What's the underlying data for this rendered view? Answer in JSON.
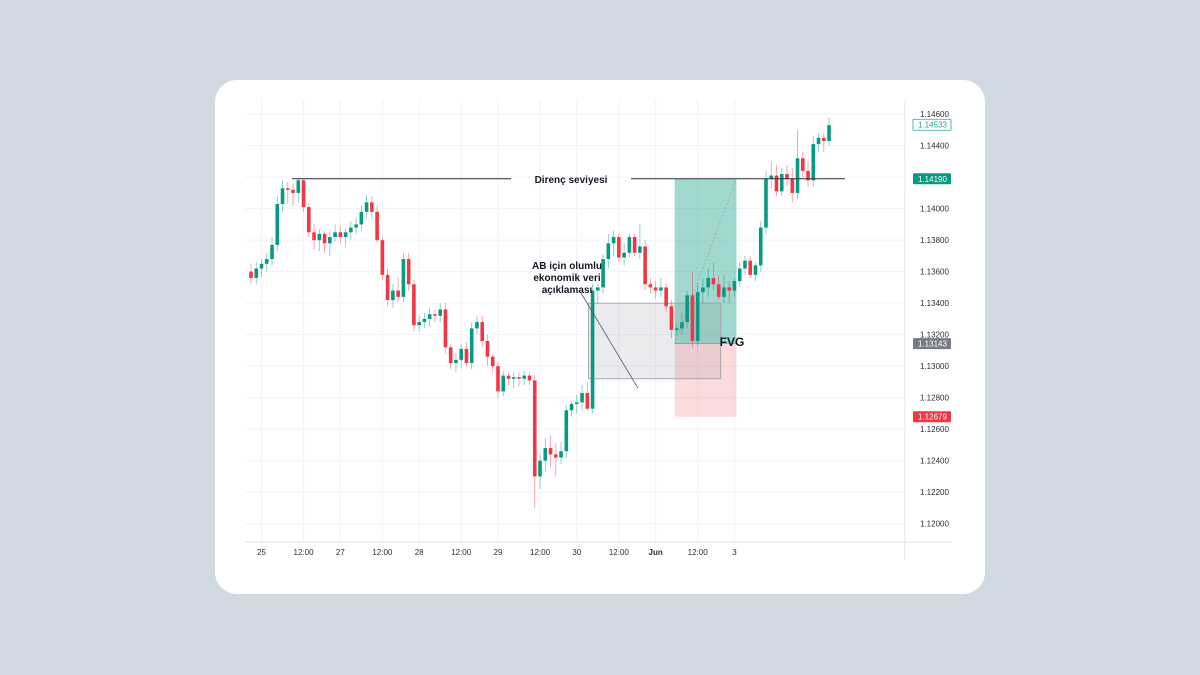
{
  "chart_data": {
    "type": "candlestick",
    "y_ticks": [
      "1.14600",
      "1.14400",
      "1.14200",
      "1.14000",
      "1.13800",
      "1.13600",
      "1.13400",
      "1.13200",
      "1.13000",
      "1.12800",
      "1.12600",
      "1.12400",
      "1.12200",
      "1.12000"
    ],
    "ylim": [
      1.1189,
      1.1469
    ],
    "x_ticks": [
      {
        "label": "25",
        "i": 2,
        "bold": false
      },
      {
        "label": "12:00",
        "i": 10,
        "bold": false
      },
      {
        "label": "27",
        "i": 17,
        "bold": false
      },
      {
        "label": "12:00",
        "i": 25,
        "bold": false
      },
      {
        "label": "28",
        "i": 32,
        "bold": false
      },
      {
        "label": "12:00",
        "i": 40,
        "bold": false
      },
      {
        "label": "29",
        "i": 47,
        "bold": false
      },
      {
        "label": "12:00",
        "i": 55,
        "bold": false
      },
      {
        "label": "30",
        "i": 62,
        "bold": false
      },
      {
        "label": "12:00",
        "i": 70,
        "bold": false
      },
      {
        "label": "Jun",
        "i": 77,
        "bold": true
      },
      {
        "label": "12:00",
        "i": 85,
        "bold": false
      },
      {
        "label": "3",
        "i": 92,
        "bold": false
      }
    ],
    "candles": [
      [
        1.136,
        1.1365,
        1.1352,
        1.1356
      ],
      [
        1.1356,
        1.1366,
        1.1352,
        1.1362
      ],
      [
        1.1362,
        1.1368,
        1.1357,
        1.1365
      ],
      [
        1.1365,
        1.1372,
        1.136,
        1.1368
      ],
      [
        1.1368,
        1.1382,
        1.1364,
        1.1377
      ],
      [
        1.1377,
        1.1408,
        1.1373,
        1.1403
      ],
      [
        1.1403,
        1.1418,
        1.1398,
        1.1413
      ],
      [
        1.1413,
        1.1417,
        1.1403,
        1.1412
      ],
      [
        1.1412,
        1.1416,
        1.1402,
        1.141
      ],
      [
        1.141,
        1.1419,
        1.1404,
        1.1418
      ],
      [
        1.1418,
        1.1419,
        1.1398,
        1.1401
      ],
      [
        1.1401,
        1.1404,
        1.1382,
        1.1385
      ],
      [
        1.1385,
        1.139,
        1.1374,
        1.138
      ],
      [
        1.138,
        1.1387,
        1.1373,
        1.1384
      ],
      [
        1.1384,
        1.1386,
        1.1372,
        1.1378
      ],
      [
        1.1378,
        1.1386,
        1.137,
        1.1382
      ],
      [
        1.1382,
        1.139,
        1.1379,
        1.1385
      ],
      [
        1.1385,
        1.1389,
        1.1378,
        1.1382
      ],
      [
        1.1382,
        1.1387,
        1.1376,
        1.1385
      ],
      [
        1.1385,
        1.1392,
        1.138,
        1.1388
      ],
      [
        1.1388,
        1.1394,
        1.1384,
        1.139
      ],
      [
        1.139,
        1.1402,
        1.1386,
        1.1398
      ],
      [
        1.1398,
        1.1409,
        1.1394,
        1.1404
      ],
      [
        1.1404,
        1.1408,
        1.1394,
        1.1398
      ],
      [
        1.1398,
        1.1402,
        1.1378,
        1.138
      ],
      [
        1.138,
        1.1382,
        1.1355,
        1.1358
      ],
      [
        1.1358,
        1.1362,
        1.1338,
        1.1342
      ],
      [
        1.1342,
        1.1352,
        1.1337,
        1.1348
      ],
      [
        1.1348,
        1.1356,
        1.1341,
        1.1344
      ],
      [
        1.1344,
        1.1372,
        1.1341,
        1.1368
      ],
      [
        1.1368,
        1.1372,
        1.1348,
        1.1352
      ],
      [
        1.1352,
        1.1355,
        1.1322,
        1.1326
      ],
      [
        1.1326,
        1.1332,
        1.1322,
        1.1328
      ],
      [
        1.1328,
        1.1334,
        1.1324,
        1.133
      ],
      [
        1.133,
        1.1337,
        1.1325,
        1.1333
      ],
      [
        1.1333,
        1.1336,
        1.1328,
        1.1332
      ],
      [
        1.1332,
        1.134,
        1.1328,
        1.1336
      ],
      [
        1.1336,
        1.134,
        1.1308,
        1.1312
      ],
      [
        1.1312,
        1.1314,
        1.1298,
        1.1302
      ],
      [
        1.1302,
        1.1308,
        1.1296,
        1.1304
      ],
      [
        1.1304,
        1.1314,
        1.1299,
        1.1311
      ],
      [
        1.1311,
        1.1315,
        1.13,
        1.1302
      ],
      [
        1.1302,
        1.1328,
        1.1298,
        1.1324
      ],
      [
        1.1324,
        1.1332,
        1.132,
        1.1328
      ],
      [
        1.1328,
        1.1332,
        1.1312,
        1.1316
      ],
      [
        1.1316,
        1.132,
        1.13,
        1.1306
      ],
      [
        1.1306,
        1.1308,
        1.1296,
        1.13
      ],
      [
        1.13,
        1.1303,
        1.128,
        1.1284
      ],
      [
        1.1284,
        1.1297,
        1.1281,
        1.1294
      ],
      [
        1.1294,
        1.1296,
        1.1288,
        1.1292
      ],
      [
        1.1292,
        1.1296,
        1.1286,
        1.1293
      ],
      [
        1.1293,
        1.1296,
        1.1287,
        1.1292
      ],
      [
        1.1292,
        1.1297,
        1.1288,
        1.1294
      ],
      [
        1.1294,
        1.1296,
        1.1288,
        1.1291
      ],
      [
        1.1291,
        1.1294,
        1.121,
        1.123
      ],
      [
        1.123,
        1.1244,
        1.1222,
        1.124
      ],
      [
        1.124,
        1.1254,
        1.1233,
        1.1248
      ],
      [
        1.1248,
        1.1256,
        1.1236,
        1.1244
      ],
      [
        1.1244,
        1.1251,
        1.123,
        1.1242
      ],
      [
        1.1242,
        1.1252,
        1.1238,
        1.1246
      ],
      [
        1.1246,
        1.1275,
        1.1242,
        1.1272
      ],
      [
        1.1272,
        1.1278,
        1.1268,
        1.1276
      ],
      [
        1.1276,
        1.1282,
        1.127,
        1.1277
      ],
      [
        1.1277,
        1.1288,
        1.1272,
        1.1283
      ],
      [
        1.1283,
        1.129,
        1.1272,
        1.1273
      ],
      [
        1.1273,
        1.1352,
        1.127,
        1.1348
      ],
      [
        1.1348,
        1.1352,
        1.134,
        1.135
      ],
      [
        1.135,
        1.1371,
        1.1346,
        1.1368
      ],
      [
        1.1368,
        1.1384,
        1.1362,
        1.1378
      ],
      [
        1.1378,
        1.1386,
        1.137,
        1.1382
      ],
      [
        1.1382,
        1.1384,
        1.1366,
        1.1369
      ],
      [
        1.1369,
        1.1378,
        1.1364,
        1.1372
      ],
      [
        1.1372,
        1.1384,
        1.1369,
        1.1382
      ],
      [
        1.1382,
        1.1384,
        1.137,
        1.1372
      ],
      [
        1.1372,
        1.139,
        1.1368,
        1.1376
      ],
      [
        1.1376,
        1.138,
        1.1348,
        1.1352
      ],
      [
        1.1352,
        1.1356,
        1.1346,
        1.135
      ],
      [
        1.135,
        1.1354,
        1.1343,
        1.1348
      ],
      [
        1.1348,
        1.1356,
        1.1344,
        1.135
      ],
      [
        1.135,
        1.1353,
        1.1334,
        1.1338
      ],
      [
        1.1338,
        1.1342,
        1.1318,
        1.1323
      ],
      [
        1.1323,
        1.1327,
        1.132,
        1.1324
      ],
      [
        1.1324,
        1.1334,
        1.132,
        1.1328
      ],
      [
        1.1328,
        1.1348,
        1.1324,
        1.1345
      ],
      [
        1.1345,
        1.136,
        1.1312,
        1.1316
      ],
      [
        1.1316,
        1.1352,
        1.1313,
        1.1347
      ],
      [
        1.1347,
        1.1356,
        1.134,
        1.135
      ],
      [
        1.135,
        1.1362,
        1.1344,
        1.1356
      ],
      [
        1.1356,
        1.1366,
        1.1348,
        1.1352
      ],
      [
        1.1352,
        1.1358,
        1.1342,
        1.1344
      ],
      [
        1.1344,
        1.1358,
        1.134,
        1.135
      ],
      [
        1.135,
        1.1354,
        1.134,
        1.1348
      ],
      [
        1.1348,
        1.1356,
        1.1344,
        1.1354
      ],
      [
        1.1354,
        1.1366,
        1.135,
        1.1362
      ],
      [
        1.1362,
        1.137,
        1.1358,
        1.1367
      ],
      [
        1.1367,
        1.137,
        1.1356,
        1.1358
      ],
      [
        1.1358,
        1.1366,
        1.1354,
        1.1364
      ],
      [
        1.1364,
        1.1392,
        1.136,
        1.1388
      ],
      [
        1.1388,
        1.1424,
        1.1384,
        1.1419
      ],
      [
        1.1419,
        1.143,
        1.1413,
        1.1421
      ],
      [
        1.1421,
        1.1428,
        1.1408,
        1.1411
      ],
      [
        1.1411,
        1.1426,
        1.1408,
        1.1422
      ],
      [
        1.1422,
        1.1428,
        1.1414,
        1.1419
      ],
      [
        1.1419,
        1.1426,
        1.1404,
        1.141
      ],
      [
        1.141,
        1.145,
        1.1406,
        1.1432
      ],
      [
        1.1432,
        1.1436,
        1.142,
        1.1424
      ],
      [
        1.1424,
        1.143,
        1.1414,
        1.1418
      ],
      [
        1.1418,
        1.1446,
        1.1414,
        1.1441
      ],
      [
        1.1441,
        1.1448,
        1.1436,
        1.1445
      ],
      [
        1.1445,
        1.1448,
        1.1436,
        1.1443
      ],
      [
        1.1443,
        1.1458,
        1.144,
        1.1453
      ]
    ],
    "resistance": {
      "label": "Direnç seviyesi",
      "y": 1.1419
    },
    "news": {
      "lines": [
        "AB için olumlu",
        "ekonomik veri",
        "açıklaması"
      ]
    },
    "fvg": {
      "label": "FVG",
      "x_from": 65,
      "x_to": 89,
      "y_top": 1.134,
      "y_bottom": 1.1292
    },
    "position": {
      "x_from": 81,
      "x_to": 92,
      "take_profit": 1.1419,
      "entry": 1.13143,
      "stop": 1.12679
    },
    "price_tags": [
      {
        "label": "1.14533",
        "y": 1.14533,
        "style": "outline",
        "color": "#26a69a"
      },
      {
        "label": "1.14190",
        "y": 1.1419,
        "style": "fill",
        "color": "#089981"
      },
      {
        "label": "1.13143",
        "y": 1.13143,
        "style": "fill",
        "color": "#787b86"
      },
      {
        "label": "1.12679",
        "y": 1.12679,
        "style": "fill",
        "color": "#f23645"
      }
    ],
    "colors": {
      "up": "#089981",
      "down": "#f23645",
      "grid": "#f0f3fa",
      "text": "#2a2e39"
    }
  }
}
